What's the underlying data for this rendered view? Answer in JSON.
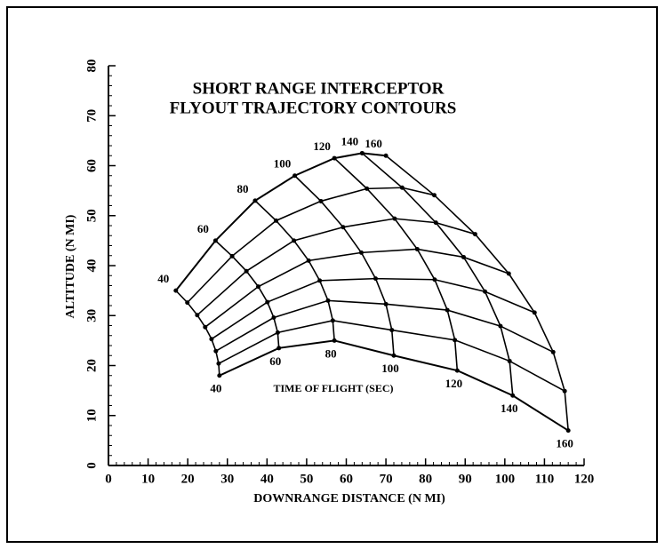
{
  "chart_data": {
    "type": "contour",
    "title": [
      "SHORT RANGE INTERCEPTOR",
      "FLYOUT TRAJECTORY CONTOURS"
    ],
    "xlabel": "DOWNRANGE DISTANCE (N MI)",
    "ylabel": "ALTITUDE (N MI)",
    "annotation": "TIME OF FLIGHT (SEC)",
    "times": [
      40,
      60,
      80,
      100,
      120,
      140,
      160
    ],
    "series": [
      {
        "x": [
          17,
          27,
          37,
          47,
          57,
          64,
          70
        ],
        "values": [
          35,
          45,
          53,
          58,
          61.5,
          62.5,
          62
        ]
      },
      {
        "x": [
          19.9,
          31.2,
          42.3,
          53.6,
          65.2,
          74.1,
          82.2
        ],
        "values": [
          32.6,
          41.9,
          49,
          52.9,
          55.4,
          55.6,
          54.1
        ]
      },
      {
        "x": [
          22.4,
          34.8,
          46.8,
          59.2,
          72.2,
          82.6,
          92.5
        ],
        "values": [
          30.1,
          38.9,
          45,
          47.7,
          49.4,
          48.6,
          46.3
        ]
      },
      {
        "x": [
          24.4,
          37.8,
          50.5,
          63.8,
          77.9,
          89.6,
          101
        ],
        "values": [
          27.7,
          35.8,
          41,
          42.6,
          43.3,
          41.7,
          38.4
        ]
      },
      {
        "x": [
          26,
          40.1,
          53.3,
          67.4,
          82.3,
          95,
          107.5
        ],
        "values": [
          25.3,
          32.7,
          37,
          37.4,
          37.2,
          34.8,
          30.6
        ]
      },
      {
        "x": [
          27.1,
          41.7,
          55.4,
          70,
          85.5,
          98.9,
          112.2
        ],
        "values": [
          22.9,
          29.6,
          33,
          32.3,
          31.1,
          27.9,
          22.7
        ]
      },
      {
        "x": [
          27.8,
          42.7,
          56.6,
          71.5,
          87.4,
          101.2,
          115.1
        ],
        "values": [
          20.4,
          26.6,
          29,
          27.1,
          25.1,
          20.9,
          14.9
        ]
      },
      {
        "x": [
          28,
          43,
          57,
          72,
          88,
          102,
          116
        ],
        "values": [
          18,
          23.5,
          25,
          22,
          19,
          14,
          7
        ]
      }
    ],
    "color": "#000000",
    "xlim": [
      0,
      120
    ],
    "xticks": [
      0,
      10,
      20,
      30,
      40,
      50,
      60,
      70,
      80,
      90,
      100,
      110,
      120
    ],
    "ylim": [
      0,
      80
    ],
    "yticks": [
      0,
      10,
      20,
      30,
      40,
      50,
      60,
      70,
      80
    ],
    "minor_tick_step": 2
  }
}
